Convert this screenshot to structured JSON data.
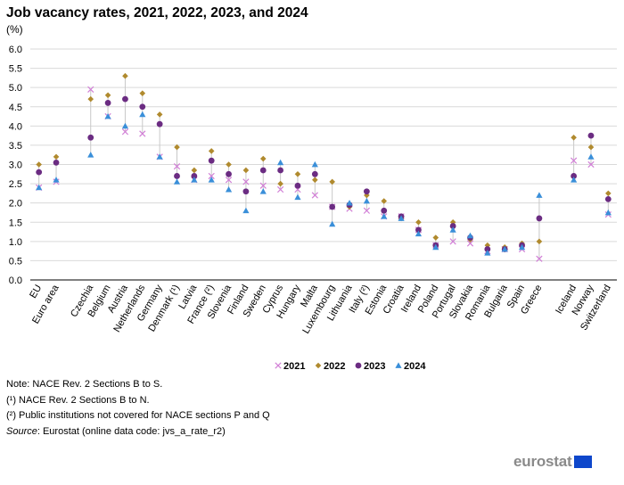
{
  "chart_data": {
    "type": "scatter",
    "title": "Job vacancy rates, 2021, 2022, 2023, and 2024",
    "subtitle": "(%)",
    "ylim": [
      0,
      6
    ],
    "yticks": [
      "0.0",
      "0.5",
      "1.0",
      "1.5",
      "2.0",
      "2.5",
      "3.0",
      "3.5",
      "4.0",
      "4.5",
      "5.0",
      "5.5",
      "6.0"
    ],
    "categories": [
      "EU",
      "Euro area",
      "",
      "Czechia",
      "Belgium",
      "Austria",
      "Netherlands",
      "Germany",
      "Denmark (¹)",
      "Latvia",
      "France (²)",
      "Slovenia",
      "Finland",
      "Sweden",
      "Cyprus",
      "Hungary",
      "Malta",
      "Luxembourg",
      "Lithuania",
      "Italy (²)",
      "Estonia",
      "Croatia",
      "Ireland",
      "Poland",
      "Portugal",
      "Slovakia",
      "Romania",
      "Bulgaria",
      "Spain",
      "Greece",
      "",
      "Iceland",
      "Norway",
      "Switzerland"
    ],
    "series": [
      {
        "name": "2021",
        "marker": "x",
        "color": "#d17fd6",
        "values": [
          2.4,
          2.55,
          null,
          4.95,
          4.25,
          3.85,
          3.8,
          3.2,
          2.95,
          2.6,
          2.7,
          2.6,
          2.55,
          2.45,
          2.35,
          2.35,
          2.2,
          1.9,
          1.85,
          1.8,
          1.65,
          1.65,
          1.3,
          0.9,
          1.0,
          0.95,
          0.75,
          0.8,
          0.8,
          0.55,
          null,
          3.1,
          3.0,
          1.7
        ]
      },
      {
        "name": "2022",
        "marker": "diamond",
        "color": "#b08a2e",
        "values": [
          3.0,
          3.2,
          null,
          4.7,
          4.8,
          5.3,
          4.85,
          4.3,
          3.45,
          2.85,
          3.35,
          3.0,
          2.85,
          3.15,
          2.5,
          2.75,
          2.6,
          2.55,
          1.9,
          2.2,
          2.05,
          1.6,
          1.5,
          1.1,
          1.5,
          1.05,
          0.9,
          0.85,
          0.95,
          1.0,
          null,
          3.7,
          3.45,
          2.25
        ]
      },
      {
        "name": "2023",
        "marker": "circle",
        "color": "#6b2c82",
        "values": [
          2.8,
          3.05,
          null,
          3.7,
          4.6,
          4.7,
          4.5,
          4.05,
          2.7,
          2.7,
          3.1,
          2.75,
          2.3,
          2.85,
          2.85,
          2.45,
          2.75,
          1.9,
          1.95,
          2.3,
          1.8,
          1.65,
          1.3,
          0.9,
          1.4,
          1.1,
          0.8,
          0.8,
          0.9,
          1.6,
          null,
          2.7,
          3.75,
          2.1
        ]
      },
      {
        "name": "2024",
        "marker": "triangle",
        "color": "#3a8fd9",
        "values": [
          2.4,
          2.6,
          null,
          3.25,
          4.25,
          4.0,
          4.3,
          3.2,
          2.55,
          2.6,
          2.6,
          2.35,
          1.8,
          2.3,
          3.05,
          2.15,
          3.0,
          1.45,
          2.0,
          2.05,
          1.65,
          1.6,
          1.2,
          0.85,
          1.3,
          1.15,
          0.7,
          0.8,
          0.85,
          2.2,
          null,
          2.6,
          3.2,
          1.75
        ]
      }
    ],
    "legend": [
      "2021",
      "2022",
      "2023",
      "2024"
    ],
    "grid": true
  },
  "notes": {
    "line1": "Note: NACE Rev. 2 Sections B to S.",
    "line2": "(¹) NACE Rev. 2 Sections B to N.",
    "line3": "(²) Public institutions not covered for NACE sections P and Q",
    "source_label": "Source",
    "source_text": ": Eurostat (online data code: jvs_a_rate_r2)"
  },
  "logo": {
    "text": "eurostat"
  }
}
